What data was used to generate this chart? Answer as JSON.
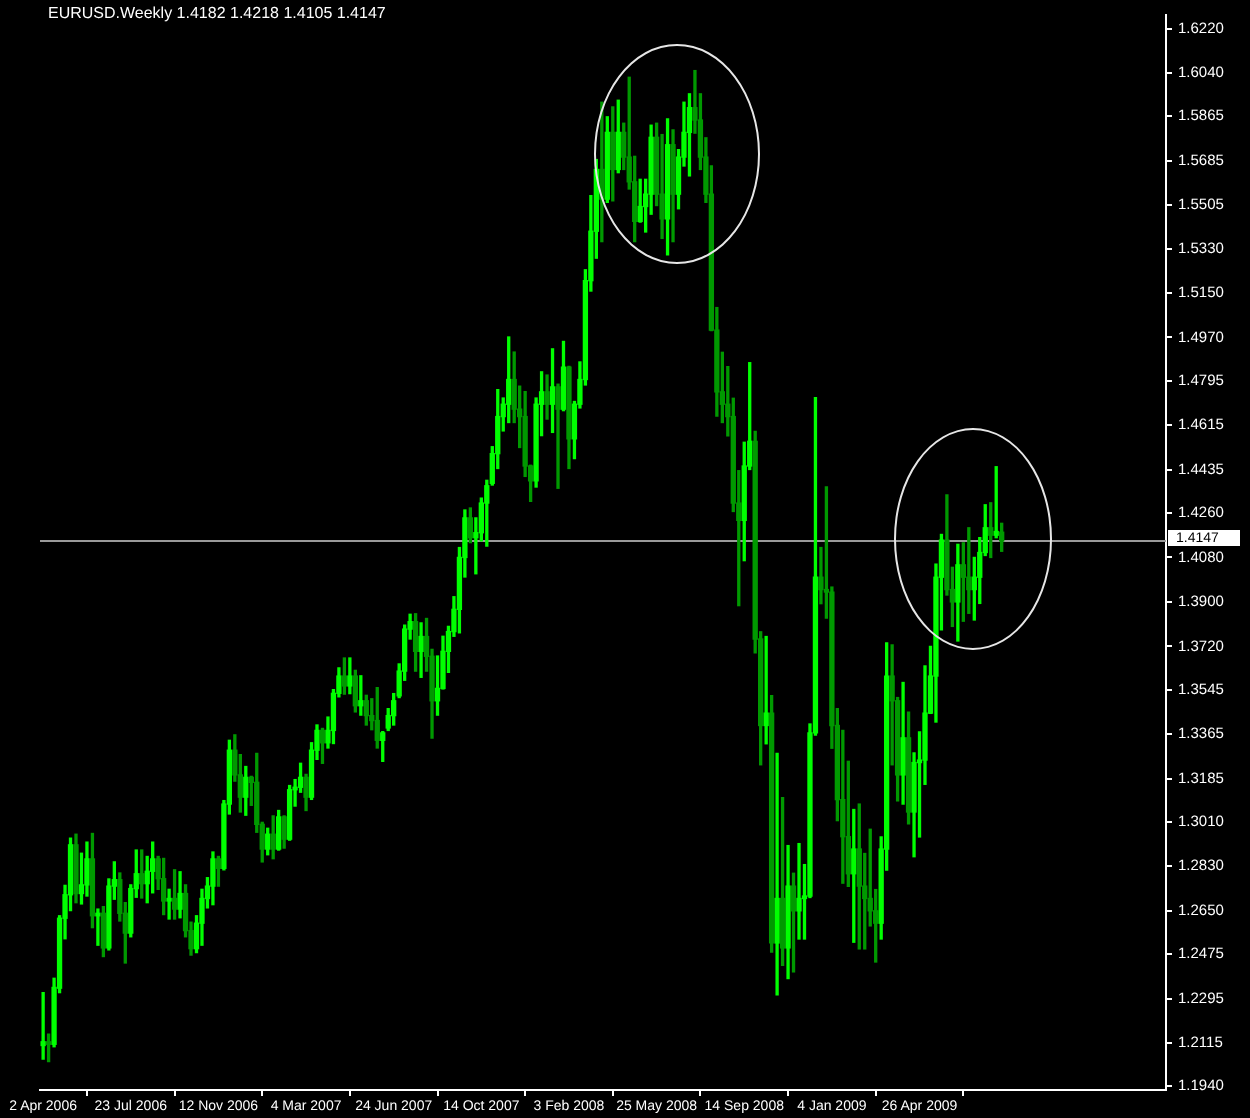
{
  "chart_data": {
    "type": "candlestick",
    "title": "EURUSD.Weekly 1.4182 1.4218 1.4105 1.4147",
    "grid": false,
    "legend": false,
    "x": [
      "2006-04-02",
      "2006-04-09",
      "2006-04-16",
      "2006-04-23",
      "2006-04-30",
      "2006-05-07",
      "2006-05-14",
      "2006-05-21",
      "2006-05-28",
      "2006-06-04",
      "2006-06-11",
      "2006-06-18",
      "2006-06-25",
      "2006-07-02",
      "2006-07-09",
      "2006-07-16",
      "2006-07-23",
      "2006-07-30",
      "2006-08-06",
      "2006-08-13",
      "2006-08-20",
      "2006-08-27",
      "2006-09-03",
      "2006-09-10",
      "2006-09-17",
      "2006-09-24",
      "2006-10-01",
      "2006-10-08",
      "2006-10-15",
      "2006-10-22",
      "2006-10-29",
      "2006-11-05",
      "2006-11-12",
      "2006-11-19",
      "2006-11-26",
      "2006-12-03",
      "2006-12-10",
      "2006-12-17",
      "2006-12-24",
      "2006-12-31",
      "2007-01-07",
      "2007-01-14",
      "2007-01-21",
      "2007-01-28",
      "2007-02-04",
      "2007-02-11",
      "2007-02-18",
      "2007-02-25",
      "2007-03-04",
      "2007-03-11",
      "2007-03-18",
      "2007-03-25",
      "2007-04-01",
      "2007-04-08",
      "2007-04-15",
      "2007-04-22",
      "2007-04-29",
      "2007-05-06",
      "2007-05-13",
      "2007-05-20",
      "2007-05-27",
      "2007-06-03",
      "2007-06-10",
      "2007-06-17",
      "2007-06-24",
      "2007-07-01",
      "2007-07-08",
      "2007-07-15",
      "2007-07-22",
      "2007-07-29",
      "2007-08-05",
      "2007-08-12",
      "2007-08-19",
      "2007-08-26",
      "2007-09-02",
      "2007-09-09",
      "2007-09-16",
      "2007-09-23",
      "2007-09-30",
      "2007-10-07",
      "2007-10-14",
      "2007-10-21",
      "2007-10-28",
      "2007-11-04",
      "2007-11-11",
      "2007-11-18",
      "2007-11-25",
      "2007-12-02",
      "2007-12-09",
      "2007-12-16",
      "2007-12-23",
      "2007-12-30",
      "2008-01-06",
      "2008-01-13",
      "2008-01-20",
      "2008-01-27",
      "2008-02-03",
      "2008-02-10",
      "2008-02-17",
      "2008-02-24",
      "2008-03-02",
      "2008-03-09",
      "2008-03-16",
      "2008-03-23",
      "2008-03-30",
      "2008-04-06",
      "2008-04-13",
      "2008-04-20",
      "2008-04-27",
      "2008-05-04",
      "2008-05-11",
      "2008-05-18",
      "2008-05-25",
      "2008-06-01",
      "2008-06-08",
      "2008-06-15",
      "2008-06-22",
      "2008-06-29",
      "2008-07-06",
      "2008-07-13",
      "2008-07-20",
      "2008-07-27",
      "2008-08-03",
      "2008-08-10",
      "2008-08-17",
      "2008-08-24",
      "2008-08-31",
      "2008-09-07",
      "2008-09-14",
      "2008-09-21",
      "2008-09-28",
      "2008-10-05",
      "2008-10-12",
      "2008-10-19",
      "2008-10-26",
      "2008-11-02",
      "2008-11-09",
      "2008-11-16",
      "2008-11-23",
      "2008-11-30",
      "2008-12-07",
      "2008-12-14",
      "2008-12-21",
      "2008-12-28",
      "2009-01-04",
      "2009-01-11",
      "2009-01-18",
      "2009-01-25",
      "2009-02-01",
      "2009-02-08",
      "2009-02-15",
      "2009-02-22",
      "2009-03-01",
      "2009-03-08",
      "2009-03-15",
      "2009-03-22",
      "2009-03-29",
      "2009-04-05",
      "2009-04-12",
      "2009-04-19",
      "2009-04-26",
      "2009-05-03",
      "2009-05-10",
      "2009-05-17",
      "2009-05-24",
      "2009-05-31",
      "2009-06-07",
      "2009-06-14",
      "2009-06-21",
      "2009-06-28",
      "2009-07-05",
      "2009-07-12",
      "2009-07-19",
      "2009-07-26",
      "2009-08-02",
      "2009-08-09"
    ],
    "ohlc": [
      [
        1.2105,
        1.2319,
        1.205,
        1.212
      ],
      [
        1.212,
        1.2151,
        1.204,
        1.211
      ],
      [
        1.211,
        1.2377,
        1.21,
        1.234
      ],
      [
        1.2337,
        1.263,
        1.2319,
        1.262
      ],
      [
        1.262,
        1.2753,
        1.2537,
        1.2715
      ],
      [
        1.2715,
        1.2944,
        1.2651,
        1.2917
      ],
      [
        1.2917,
        1.296,
        1.2683,
        1.272
      ],
      [
        1.272,
        1.2883,
        1.2678,
        1.2755
      ],
      [
        1.2755,
        1.2928,
        1.271,
        1.286
      ],
      [
        1.286,
        1.2963,
        1.2582,
        1.263
      ],
      [
        1.263,
        1.2657,
        1.2511,
        1.264
      ],
      [
        1.264,
        1.2667,
        1.2465,
        1.25
      ],
      [
        1.25,
        1.2779,
        1.2492,
        1.275
      ],
      [
        1.275,
        1.2848,
        1.2697,
        1.2776
      ],
      [
        1.2776,
        1.2803,
        1.2609,
        1.264
      ],
      [
        1.264,
        1.2683,
        1.2439,
        1.256
      ],
      [
        1.256,
        1.2755,
        1.2545,
        1.274
      ],
      [
        1.274,
        1.2896,
        1.2705,
        1.28
      ],
      [
        1.28,
        1.2896,
        1.2702,
        1.276
      ],
      [
        1.276,
        1.287,
        1.2683,
        1.281
      ],
      [
        1.281,
        1.2928,
        1.2723,
        1.286
      ],
      [
        1.286,
        1.287,
        1.2737,
        1.278
      ],
      [
        1.278,
        1.2862,
        1.2635,
        1.269
      ],
      [
        1.269,
        1.2737,
        1.2617,
        1.27
      ],
      [
        1.27,
        1.2816,
        1.2617,
        1.2657
      ],
      [
        1.2657,
        1.2808,
        1.2622,
        1.272
      ],
      [
        1.272,
        1.2755,
        1.2545,
        1.257
      ],
      [
        1.257,
        1.2604,
        1.2471,
        1.2497
      ],
      [
        1.2497,
        1.263,
        1.2481,
        1.26
      ],
      [
        1.26,
        1.2737,
        1.2511,
        1.27
      ],
      [
        1.27,
        1.2784,
        1.2662,
        1.275
      ],
      [
        1.275,
        1.2888,
        1.2675,
        1.286
      ],
      [
        1.286,
        1.287,
        1.275,
        1.2822
      ],
      [
        1.2822,
        1.3096,
        1.2816,
        1.3082
      ],
      [
        1.3082,
        1.334,
        1.3042,
        1.33
      ],
      [
        1.33,
        1.3362,
        1.3175,
        1.32
      ],
      [
        1.32,
        1.3282,
        1.305,
        1.311
      ],
      [
        1.311,
        1.3234,
        1.3037,
        1.319
      ],
      [
        1.319,
        1.3194,
        1.3077,
        1.317
      ],
      [
        1.317,
        1.3287,
        1.2968,
        1.3
      ],
      [
        1.3,
        1.3008,
        1.2848,
        1.29
      ],
      [
        1.29,
        1.2984,
        1.2877,
        1.296
      ],
      [
        1.296,
        1.3034,
        1.2861,
        1.29
      ],
      [
        1.29,
        1.3056,
        1.2896,
        1.303
      ],
      [
        1.303,
        1.3034,
        1.2904,
        1.294
      ],
      [
        1.294,
        1.3157,
        1.2936,
        1.314
      ],
      [
        1.314,
        1.3181,
        1.3074,
        1.315
      ],
      [
        1.315,
        1.3247,
        1.313,
        1.319
      ],
      [
        1.319,
        1.3202,
        1.3056,
        1.311
      ],
      [
        1.311,
        1.333,
        1.3101,
        1.33
      ],
      [
        1.33,
        1.3402,
        1.3263,
        1.338
      ],
      [
        1.338,
        1.3388,
        1.3247,
        1.333
      ],
      [
        1.333,
        1.3434,
        1.3309,
        1.338
      ],
      [
        1.338,
        1.3545,
        1.3327,
        1.353
      ],
      [
        1.353,
        1.3633,
        1.3516,
        1.36
      ],
      [
        1.36,
        1.3673,
        1.3527,
        1.356
      ],
      [
        1.356,
        1.3673,
        1.3529,
        1.36
      ],
      [
        1.36,
        1.3623,
        1.3455,
        1.348
      ],
      [
        1.348,
        1.3601,
        1.3442,
        1.35
      ],
      [
        1.35,
        1.3522,
        1.3402,
        1.344
      ],
      [
        1.344,
        1.3508,
        1.3383,
        1.342
      ],
      [
        1.342,
        1.3553,
        1.3309,
        1.334
      ],
      [
        1.334,
        1.3375,
        1.3255,
        1.337
      ],
      [
        1.339,
        1.3468,
        1.338,
        1.344
      ],
      [
        1.344,
        1.3529,
        1.3402,
        1.35
      ],
      [
        1.352,
        1.3649,
        1.3513,
        1.362
      ],
      [
        1.362,
        1.3806,
        1.3583,
        1.379
      ],
      [
        1.379,
        1.385,
        1.375,
        1.382
      ],
      [
        1.382,
        1.3852,
        1.362,
        1.37
      ],
      [
        1.37,
        1.3815,
        1.3595,
        1.376
      ],
      [
        1.376,
        1.3833,
        1.362,
        1.368
      ],
      [
        1.368,
        1.3708,
        1.3349,
        1.35
      ],
      [
        1.35,
        1.3681,
        1.3442,
        1.355
      ],
      [
        1.355,
        1.3761,
        1.3548,
        1.37
      ],
      [
        1.37,
        1.3801,
        1.3615,
        1.378
      ],
      [
        1.378,
        1.3921,
        1.3761,
        1.387
      ],
      [
        1.387,
        1.412,
        1.3775,
        1.408
      ],
      [
        1.408,
        1.4272,
        1.4001,
        1.424
      ],
      [
        1.424,
        1.428,
        1.414,
        1.416
      ],
      [
        1.416,
        1.424,
        1.4014,
        1.418
      ],
      [
        1.418,
        1.432,
        1.4147,
        1.43
      ],
      [
        1.43,
        1.4392,
        1.4126,
        1.437
      ],
      [
        1.438,
        1.4528,
        1.4373,
        1.45
      ],
      [
        1.45,
        1.4759,
        1.444,
        1.465
      ],
      [
        1.465,
        1.4725,
        1.4592,
        1.47
      ],
      [
        1.47,
        1.4972,
        1.4626,
        1.48
      ],
      [
        1.48,
        1.4911,
        1.4626,
        1.468
      ],
      [
        1.468,
        1.4773,
        1.4525,
        1.465
      ],
      [
        1.465,
        1.4751,
        1.4408,
        1.445
      ],
      [
        1.445,
        1.4453,
        1.4307,
        1.439
      ],
      [
        1.439,
        1.4725,
        1.4365,
        1.47
      ],
      [
        1.47,
        1.4831,
        1.4573,
        1.475
      ],
      [
        1.475,
        1.4818,
        1.464,
        1.47
      ],
      [
        1.47,
        1.4924,
        1.4586,
        1.477
      ],
      [
        1.477,
        1.4781,
        1.436,
        1.468
      ],
      [
        1.468,
        1.4954,
        1.4674,
        1.485
      ],
      [
        1.485,
        1.4853,
        1.444,
        1.456
      ],
      [
        1.456,
        1.4711,
        1.448,
        1.47
      ],
      [
        1.47,
        1.4871,
        1.4685,
        1.48
      ],
      [
        1.48,
        1.5244,
        1.4778,
        1.52
      ],
      [
        1.52,
        1.5544,
        1.5158,
        1.54
      ],
      [
        1.54,
        1.569,
        1.5291,
        1.565
      ],
      [
        1.565,
        1.5922,
        1.5358,
        1.553
      ],
      [
        1.553,
        1.5863,
        1.5517,
        1.58
      ],
      [
        1.58,
        1.5903,
        1.5523,
        1.565
      ],
      [
        1.565,
        1.593,
        1.5637,
        1.58
      ],
      [
        1.58,
        1.5837,
        1.565,
        1.57
      ],
      [
        1.57,
        1.6023,
        1.5571,
        1.56
      ],
      [
        1.56,
        1.5703,
        1.5358,
        1.544
      ],
      [
        1.544,
        1.561,
        1.5437,
        1.55
      ],
      [
        1.55,
        1.561,
        1.5397,
        1.555
      ],
      [
        1.555,
        1.5829,
        1.5469,
        1.578
      ],
      [
        1.578,
        1.5837,
        1.5504,
        1.555
      ],
      [
        1.555,
        1.5791,
        1.5371,
        1.545
      ],
      [
        1.545,
        1.5855,
        1.5304,
        1.575
      ],
      [
        1.575,
        1.581,
        1.5358,
        1.555
      ],
      [
        1.555,
        1.573,
        1.5491,
        1.57
      ],
      [
        1.57,
        1.5922,
        1.5664,
        1.58
      ],
      [
        1.58,
        1.5956,
        1.5624,
        1.59
      ],
      [
        1.59,
        1.605,
        1.5797,
        1.585
      ],
      [
        1.585,
        1.5956,
        1.565,
        1.57
      ],
      [
        1.57,
        1.5778,
        1.5517,
        1.555
      ],
      [
        1.555,
        1.5664,
        1.4998,
        1.5
      ],
      [
        1.5,
        1.5091,
        1.4652,
        1.475
      ],
      [
        1.475,
        1.491,
        1.4626,
        1.47
      ],
      [
        1.47,
        1.4852,
        1.4572,
        1.465
      ],
      [
        1.465,
        1.4724,
        1.4266,
        1.43
      ],
      [
        1.43,
        1.4431,
        1.3885,
        1.423
      ],
      [
        1.423,
        1.4546,
        1.4067,
        1.445
      ],
      [
        1.445,
        1.4868,
        1.4436,
        1.455
      ],
      [
        1.455,
        1.459,
        1.3694,
        1.375
      ],
      [
        1.375,
        1.3779,
        1.3241,
        1.34
      ],
      [
        1.34,
        1.376,
        1.3326,
        1.345
      ],
      [
        1.345,
        1.3521,
        1.2483,
        1.252
      ],
      [
        1.252,
        1.3287,
        1.231,
        1.27
      ],
      [
        1.27,
        1.3108,
        1.2429,
        1.25
      ],
      [
        1.25,
        1.2914,
        1.2376,
        1.275
      ],
      [
        1.275,
        1.2802,
        1.2403,
        1.265
      ],
      [
        1.265,
        1.2922,
        1.2536,
        1.27
      ],
      [
        1.27,
        1.2837,
        1.2536,
        1.271
      ],
      [
        1.271,
        1.3406,
        1.2704,
        1.337
      ],
      [
        1.337,
        1.4727,
        1.3361,
        1.4
      ],
      [
        1.4,
        1.412,
        1.3893,
        1.395
      ],
      [
        1.395,
        1.4365,
        1.3835,
        1.394
      ],
      [
        1.394,
        1.396,
        1.3308,
        1.34
      ],
      [
        1.34,
        1.3468,
        1.3015,
        1.31
      ],
      [
        1.31,
        1.338,
        1.2762,
        1.295
      ],
      [
        1.295,
        1.3255,
        1.2749,
        1.28
      ],
      [
        1.28,
        1.306,
        1.2523,
        1.29
      ],
      [
        1.29,
        1.3082,
        1.2496,
        1.275
      ],
      [
        1.275,
        1.2882,
        1.2496,
        1.27
      ],
      [
        1.27,
        1.298,
        1.2589,
        1.265
      ],
      [
        1.265,
        1.2736,
        1.2443,
        1.26
      ],
      [
        1.26,
        1.2949,
        1.2536,
        1.29
      ],
      [
        1.29,
        1.3734,
        1.2815,
        1.36
      ],
      [
        1.36,
        1.3726,
        1.3241,
        1.35
      ],
      [
        1.35,
        1.3513,
        1.3095,
        1.32
      ],
      [
        1.32,
        1.3574,
        1.3082,
        1.335
      ],
      [
        1.335,
        1.3454,
        1.3002,
        1.305
      ],
      [
        1.305,
        1.3289,
        1.2869,
        1.325
      ],
      [
        1.325,
        1.3374,
        1.2949,
        1.326
      ],
      [
        1.326,
        1.3641,
        1.3162,
        1.345
      ],
      [
        1.345,
        1.372,
        1.3449,
        1.36
      ],
      [
        1.36,
        1.4053,
        1.3414,
        1.4
      ],
      [
        1.4,
        1.4173,
        1.3787,
        1.415
      ],
      [
        1.415,
        1.4333,
        1.3928,
        1.395
      ],
      [
        1.395,
        1.404,
        1.3801,
        1.39
      ],
      [
        1.39,
        1.4133,
        1.3742,
        1.405
      ],
      [
        1.405,
        1.4139,
        1.3822,
        1.4
      ],
      [
        1.4,
        1.42,
        1.3854,
        1.395
      ],
      [
        1.395,
        1.408,
        1.3827,
        1.4
      ],
      [
        1.4,
        1.416,
        1.3894,
        1.41
      ],
      [
        1.41,
        1.4293,
        1.4088,
        1.42
      ],
      [
        1.42,
        1.4301,
        1.408,
        1.417
      ],
      [
        1.417,
        1.4447,
        1.416,
        1.4185
      ],
      [
        1.4182,
        1.4218,
        1.4105,
        1.4147
      ]
    ],
    "colors": [
      "#00ff00",
      "#009900",
      "#00ff00",
      "#00ff00",
      "#00ff00",
      "#00ff00",
      "#009900",
      "#00ff00",
      "#00ff00",
      "#009900",
      "#00ff00",
      "#009900",
      "#00ff00",
      "#00ff00",
      "#009900",
      "#009900",
      "#00ff00",
      "#00ff00",
      "#009900",
      "#00ff00",
      "#00ff00",
      "#009900",
      "#009900",
      "#00ff00",
      "#009900",
      "#00ff00",
      "#009900",
      "#009900",
      "#00ff00",
      "#00ff00",
      "#00ff00",
      "#00ff00",
      "#009900",
      "#00ff00",
      "#00ff00",
      "#009900",
      "#009900",
      "#00ff00",
      "#009900",
      "#009900",
      "#009900",
      "#00ff00",
      "#009900",
      "#00ff00",
      "#009900",
      "#00ff00",
      "#00ff00",
      "#00ff00",
      "#009900",
      "#00ff00",
      "#00ff00",
      "#009900",
      "#00ff00",
      "#00ff00",
      "#00ff00",
      "#009900",
      "#00ff00",
      "#009900",
      "#00ff00",
      "#009900",
      "#009900",
      "#009900",
      "#00ff00",
      "#00ff00",
      "#00ff00",
      "#00ff00",
      "#00ff00",
      "#00ff00",
      "#009900",
      "#00ff00",
      "#009900",
      "#009900",
      "#00ff00",
      "#00ff00",
      "#00ff00",
      "#00ff00",
      "#00ff00",
      "#00ff00",
      "#009900",
      "#00ff00",
      "#00ff00",
      "#00ff00",
      "#00ff00",
      "#00ff00",
      "#00ff00",
      "#00ff00",
      "#009900",
      "#009900",
      "#009900",
      "#009900",
      "#00ff00",
      "#00ff00",
      "#009900",
      "#00ff00",
      "#009900",
      "#00ff00",
      "#009900",
      "#00ff00",
      "#00ff00",
      "#00ff00",
      "#00ff00",
      "#00ff00",
      "#009900",
      "#00ff00",
      "#009900",
      "#00ff00",
      "#009900",
      "#009900",
      "#009900",
      "#00ff00",
      "#00ff00",
      "#00ff00",
      "#009900",
      "#009900",
      "#00ff00",
      "#009900",
      "#00ff00",
      "#00ff00",
      "#00ff00",
      "#009900",
      "#009900",
      "#009900",
      "#009900",
      "#009900",
      "#009900",
      "#009900",
      "#009900",
      "#009900",
      "#00ff00",
      "#00ff00",
      "#009900",
      "#009900",
      "#00ff00",
      "#009900",
      "#00ff00",
      "#009900",
      "#00ff00",
      "#009900",
      "#00ff00",
      "#00ff00",
      "#00ff00",
      "#00ff00",
      "#009900",
      "#009900",
      "#009900",
      "#009900",
      "#009900",
      "#009900",
      "#00ff00",
      "#009900",
      "#009900",
      "#009900",
      "#009900",
      "#00ff00",
      "#00ff00",
      "#009900",
      "#009900",
      "#00ff00",
      "#009900",
      "#00ff00",
      "#00ff00",
      "#00ff00",
      "#00ff00",
      "#00ff00",
      "#00ff00",
      "#009900",
      "#009900",
      "#00ff00",
      "#009900",
      "#009900",
      "#00ff00",
      "#00ff00",
      "#00ff00",
      "#009900",
      "#00ff00",
      "#009900"
    ],
    "xlim": [
      "2006-03-29",
      "2010-03-07"
    ],
    "xticks": [
      {
        "value": "2006-04-02",
        "label": "2 Apr 2006"
      },
      {
        "value": "2006-07-23",
        "label": "23 Jul 2006"
      },
      {
        "value": "2006-11-12",
        "label": "12 Nov 2006"
      },
      {
        "value": "2007-03-04",
        "label": "4 Mar 2007"
      },
      {
        "value": "2007-06-24",
        "label": "24 Jun 2007"
      },
      {
        "value": "2007-10-14",
        "label": "14 Oct 2007"
      },
      {
        "value": "2008-02-03",
        "label": "3 Feb 2008"
      },
      {
        "value": "2008-05-25",
        "label": "25 May 2008"
      },
      {
        "value": "2008-09-14",
        "label": "14 Sep 2008"
      },
      {
        "value": "2009-01-04",
        "label": "4 Jan 2009"
      },
      {
        "value": "2009-04-26",
        "label": "26 Apr 2009"
      }
    ],
    "ylim": [
      1.1925,
      1.6275
    ],
    "yticks": [
      {
        "value": 1.622,
        "label": "1.6220"
      },
      {
        "value": 1.604,
        "label": "1.6040"
      },
      {
        "value": 1.5865,
        "label": "1.5865"
      },
      {
        "value": 1.5685,
        "label": "1.5685"
      },
      {
        "value": 1.5505,
        "label": "1.5505"
      },
      {
        "value": 1.533,
        "label": "1.5330"
      },
      {
        "value": 1.515,
        "label": "1.5150"
      },
      {
        "value": 1.497,
        "label": "1.4970"
      },
      {
        "value": 1.4795,
        "label": "1.4795"
      },
      {
        "value": 1.4615,
        "label": "1.4615"
      },
      {
        "value": 1.4435,
        "label": "1.4435"
      },
      {
        "value": 1.426,
        "label": "1.4260"
      },
      {
        "value": 1.408,
        "label": "1.4080"
      },
      {
        "value": 1.39,
        "label": "1.3900"
      },
      {
        "value": 1.372,
        "label": "1.3720"
      },
      {
        "value": 1.3545,
        "label": "1.3545"
      },
      {
        "value": 1.3365,
        "label": "1.3365"
      },
      {
        "value": 1.3185,
        "label": "1.3185"
      },
      {
        "value": 1.301,
        "label": "1.3010"
      },
      {
        "value": 1.283,
        "label": "1.2830"
      },
      {
        "value": 1.265,
        "label": "1.2650"
      },
      {
        "value": 1.2475,
        "label": "1.2475"
      },
      {
        "value": 1.2295,
        "label": "1.2295"
      },
      {
        "value": 1.2115,
        "label": "1.2115"
      },
      {
        "value": 1.194,
        "label": "1.1940"
      }
    ],
    "ref_lines": [
      {
        "axis": "y",
        "value": 1.4147,
        "label": "1.4147",
        "color": "#9a9a9a"
      }
    ]
  }
}
